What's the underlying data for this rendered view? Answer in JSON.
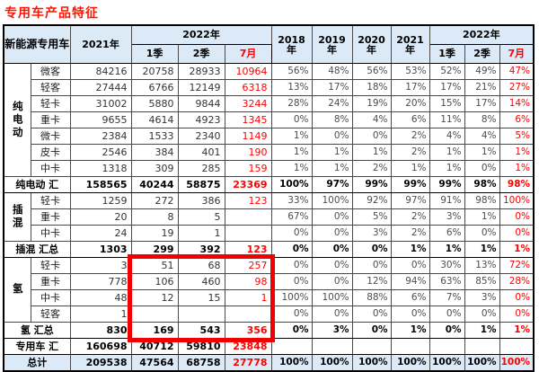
{
  "colors": {
    "title_red": "#ff1400",
    "value_red": "#ff0000",
    "header_bg": "#dce9f6",
    "highlight": "#f20000"
  },
  "chart_data": {
    "type": "table",
    "title": "专用车产品特征",
    "header": {
      "corner": "新能源专用车",
      "col_2021": "2021年",
      "group_2022": "2022年",
      "quarters": [
        "1季",
        "2季",
        "7月"
      ],
      "years": [
        "2018",
        "2019",
        "2020",
        "2021"
      ],
      "year_suffix": "年"
    },
    "rows": [
      {
        "kind": "data",
        "group": "纯电动",
        "rowspan": 7,
        "type": "微客",
        "vals": [
          "84216",
          "20758",
          "28933",
          "10964",
          "56%",
          "48%",
          "56%",
          "53%",
          "52%",
          "49%",
          "47%"
        ]
      },
      {
        "kind": "data",
        "type": "轻客",
        "vals": [
          "27444",
          "6766",
          "12149",
          "6318",
          "13%",
          "17%",
          "18%",
          "17%",
          "17%",
          "21%",
          "27%"
        ]
      },
      {
        "kind": "data",
        "type": "轻卡",
        "vals": [
          "31002",
          "5880",
          "9844",
          "3244",
          "28%",
          "24%",
          "19%",
          "20%",
          "15%",
          "17%",
          "14%"
        ]
      },
      {
        "kind": "data",
        "type": "重卡",
        "vals": [
          "9655",
          "4614",
          "4923",
          "1345",
          "0%",
          "8%",
          "4%",
          "6%",
          "11%",
          "8%",
          "6%"
        ]
      },
      {
        "kind": "data",
        "type": "微卡",
        "vals": [
          "2384",
          "1533",
          "2340",
          "1149",
          "1%",
          "0%",
          "0%",
          "2%",
          "4%",
          "4%",
          "5%"
        ]
      },
      {
        "kind": "data",
        "type": "皮卡",
        "vals": [
          "2546",
          "384",
          "401",
          "190",
          "1%",
          "1%",
          "1%",
          "2%",
          "1%",
          "1%",
          "1%"
        ]
      },
      {
        "kind": "data",
        "type": "中卡",
        "vals": [
          "1318",
          "309",
          "285",
          "159",
          "1%",
          "1%",
          "2%",
          "1%",
          "1%",
          "0%",
          "1%"
        ]
      },
      {
        "kind": "total",
        "label": "纯电动 汇",
        "vals": [
          "158565",
          "40244",
          "58875",
          "23369",
          "100%",
          "97%",
          "99%",
          "99%",
          "99%",
          "98%",
          "98%"
        ]
      },
      {
        "kind": "data",
        "group": "插混",
        "rowspan": 3,
        "type": "轻卡",
        "vals": [
          "1259",
          "272",
          "386",
          "123",
          "33%",
          "100%",
          "92%",
          "97%",
          "91%",
          "98%",
          "100%"
        ]
      },
      {
        "kind": "data",
        "type": "重卡",
        "vals": [
          "20",
          "8",
          "5",
          "",
          "67%",
          "0%",
          "5%",
          "2%",
          "3%",
          "1%",
          "0%"
        ]
      },
      {
        "kind": "data",
        "type": "中卡",
        "vals": [
          "24",
          "19",
          "1",
          "",
          "0%",
          "0%",
          "3%",
          "2%",
          "6%",
          "0%",
          "0%"
        ]
      },
      {
        "kind": "total",
        "label": "插混 汇总",
        "vals": [
          "1303",
          "299",
          "392",
          "123",
          "0%",
          "0%",
          "0%",
          "1%",
          "1%",
          "1%",
          "1%"
        ]
      },
      {
        "kind": "data",
        "group": "氢",
        "rowspan": 4,
        "type": "轻卡",
        "vals": [
          "3",
          "51",
          "68",
          "257",
          "0%",
          "0%",
          "0%",
          "0%",
          "30%",
          "13%",
          "72%"
        ]
      },
      {
        "kind": "data",
        "type": "重卡",
        "vals": [
          "778",
          "106",
          "460",
          "98",
          "0%",
          "0%",
          "12%",
          "94%",
          "63%",
          "85%",
          "28%"
        ]
      },
      {
        "kind": "data",
        "type": "中卡",
        "vals": [
          "48",
          "12",
          "15",
          "1",
          "100%",
          "100%",
          "88%",
          "6%",
          "7%",
          "3%",
          "0%"
        ]
      },
      {
        "kind": "data",
        "type": "轻客",
        "vals": [
          "1",
          "",
          "",
          "",
          "0%",
          "0%",
          "0%",
          "0%",
          "0%",
          "0%",
          "0%"
        ]
      },
      {
        "kind": "total",
        "label": "氢 汇总",
        "vals": [
          "830",
          "169",
          "543",
          "356",
          "0%",
          "3%",
          "0%",
          "1%",
          "0%",
          "1%",
          "1%"
        ]
      },
      {
        "kind": "total",
        "label": "专用车 汇",
        "vals": [
          "160698",
          "40712",
          "59810",
          "23848",
          "",
          "",
          "",
          "",
          "",
          "",
          ""
        ]
      },
      {
        "kind": "grand",
        "label": "总计",
        "vals": [
          "209538",
          "47564",
          "68758",
          "27778",
          "100%",
          "100%",
          "100%",
          "100%",
          "100%",
          "100%",
          "100%"
        ]
      }
    ],
    "highlight_box": {
      "first_row": 12,
      "last_row": 16,
      "first_col": 1,
      "last_col": 3,
      "note_columns": [
        "1季",
        "2季",
        "7月"
      ],
      "note_rows": [
        "氢 轻卡",
        "氢 重卡",
        "氢 中卡",
        "氢 轻客",
        "氢 汇总"
      ]
    }
  }
}
